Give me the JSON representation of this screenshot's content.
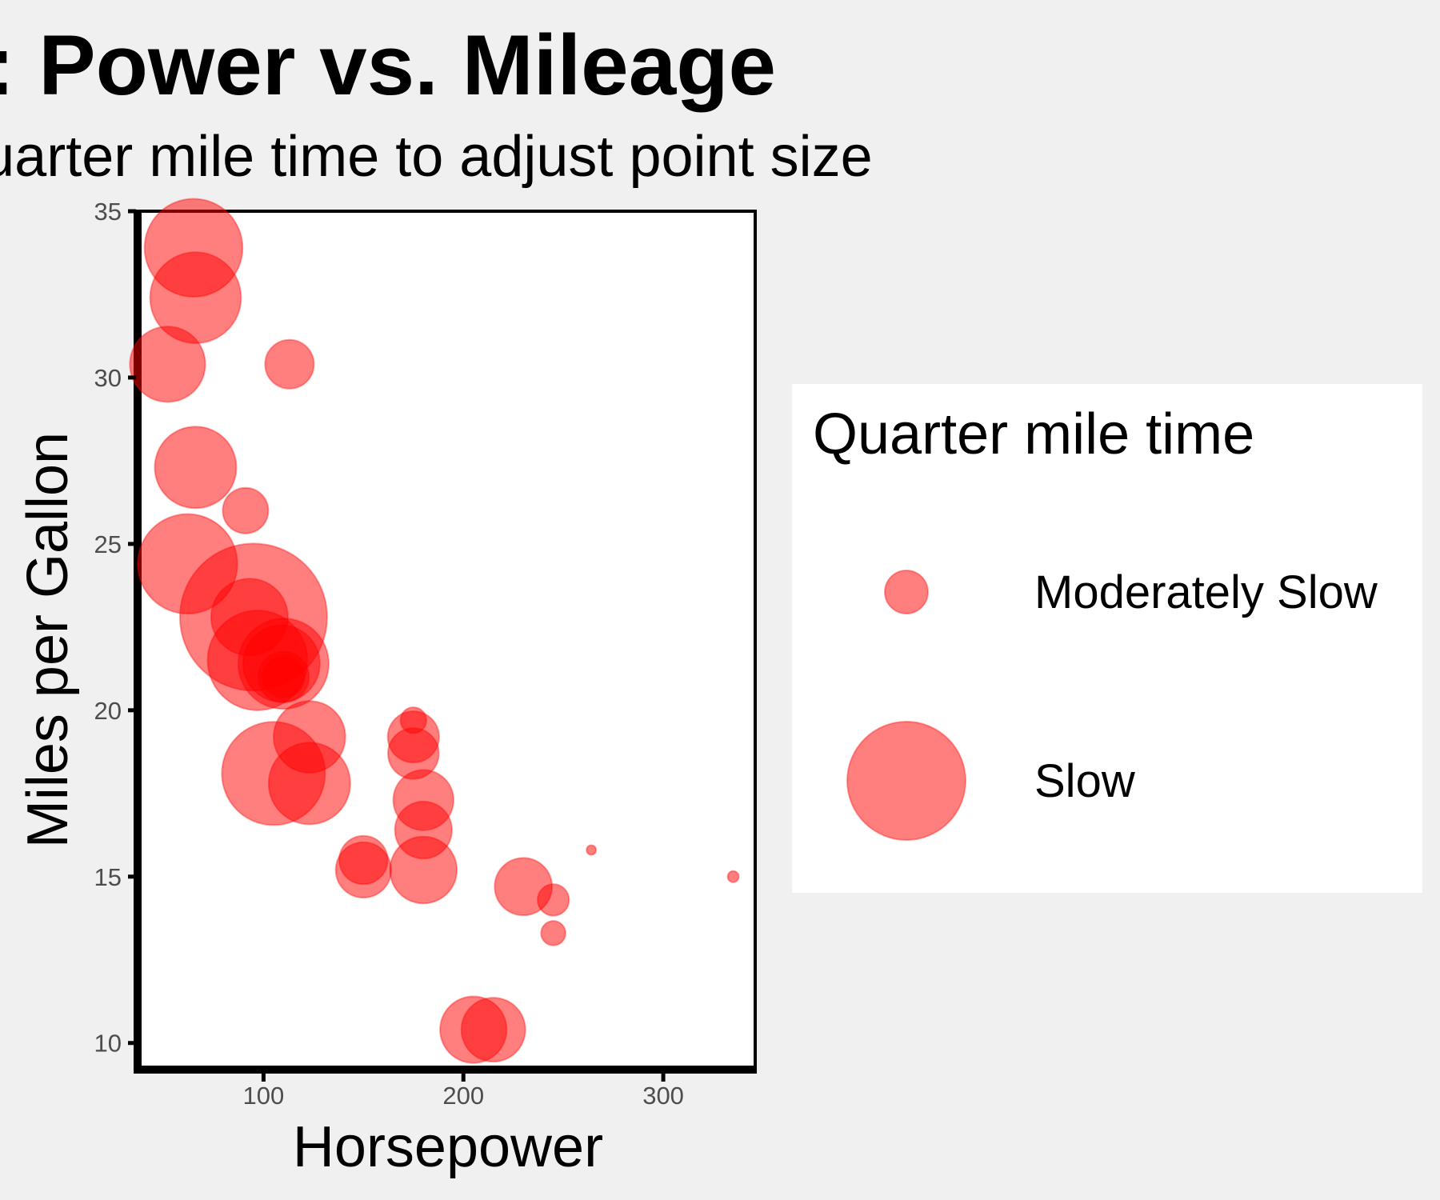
{
  "chart_data": {
    "type": "scatter",
    "title": "Cars: Power vs. Mileage",
    "subtitle": "Using quarter mile time to adjust point size",
    "xlabel": "Horsepower",
    "ylabel": "Miles per Gallon",
    "xlim": [
      37,
      346
    ],
    "ylim": [
      9.2,
      35
    ],
    "x_ticks": [
      100,
      200,
      300
    ],
    "y_ticks": [
      10,
      15,
      20,
      25,
      30,
      35
    ],
    "grid": false,
    "point_color": "#ff0000",
    "point_alpha": 0.5,
    "size_variable": "qsec",
    "size_range_qsec": [
      14.5,
      22.9
    ],
    "points": [
      {
        "hp": 110,
        "mpg": 21.0,
        "qsec": 16.46
      },
      {
        "hp": 110,
        "mpg": 21.0,
        "qsec": 17.02
      },
      {
        "hp": 93,
        "mpg": 22.8,
        "qsec": 18.61
      },
      {
        "hp": 110,
        "mpg": 21.4,
        "qsec": 19.44
      },
      {
        "hp": 175,
        "mpg": 18.7,
        "qsec": 17.02
      },
      {
        "hp": 105,
        "mpg": 18.1,
        "qsec": 20.22
      },
      {
        "hp": 245,
        "mpg": 14.3,
        "qsec": 15.84
      },
      {
        "hp": 62,
        "mpg": 24.4,
        "qsec": 20.0
      },
      {
        "hp": 95,
        "mpg": 22.8,
        "qsec": 22.9
      },
      {
        "hp": 123,
        "mpg": 19.2,
        "qsec": 18.3
      },
      {
        "hp": 123,
        "mpg": 17.8,
        "qsec": 18.9
      },
      {
        "hp": 180,
        "mpg": 16.4,
        "qsec": 17.4
      },
      {
        "hp": 180,
        "mpg": 17.3,
        "qsec": 17.6
      },
      {
        "hp": 180,
        "mpg": 15.2,
        "qsec": 18.0
      },
      {
        "hp": 205,
        "mpg": 10.4,
        "qsec": 17.98
      },
      {
        "hp": 215,
        "mpg": 10.4,
        "qsec": 17.82
      },
      {
        "hp": 230,
        "mpg": 14.7,
        "qsec": 17.42
      },
      {
        "hp": 66,
        "mpg": 32.4,
        "qsec": 19.47
      },
      {
        "hp": 52,
        "mpg": 30.4,
        "qsec": 18.52
      },
      {
        "hp": 65,
        "mpg": 33.9,
        "qsec": 19.9
      },
      {
        "hp": 97,
        "mpg": 21.5,
        "qsec": 20.01
      },
      {
        "hp": 150,
        "mpg": 15.5,
        "qsec": 16.87
      },
      {
        "hp": 150,
        "mpg": 15.2,
        "qsec": 17.3
      },
      {
        "hp": 245,
        "mpg": 13.3,
        "qsec": 15.41
      },
      {
        "hp": 175,
        "mpg": 19.2,
        "qsec": 17.05
      },
      {
        "hp": 66,
        "mpg": 27.3,
        "qsec": 18.9
      },
      {
        "hp": 91,
        "mpg": 26.0,
        "qsec": 16.7
      },
      {
        "hp": 113,
        "mpg": 30.4,
        "qsec": 16.9
      },
      {
        "hp": 264,
        "mpg": 15.8,
        "qsec": 14.5
      },
      {
        "hp": 175,
        "mpg": 19.7,
        "qsec": 15.5
      },
      {
        "hp": 335,
        "mpg": 15.0,
        "qsec": 14.6
      },
      {
        "hp": 109,
        "mpg": 21.4,
        "qsec": 18.6
      }
    ],
    "legend": {
      "title": "Quarter mile time",
      "position": "right",
      "entries": [
        {
          "label": "Moderately Slow",
          "qsec": 16
        },
        {
          "label": "Slow",
          "qsec": 20
        }
      ]
    }
  }
}
